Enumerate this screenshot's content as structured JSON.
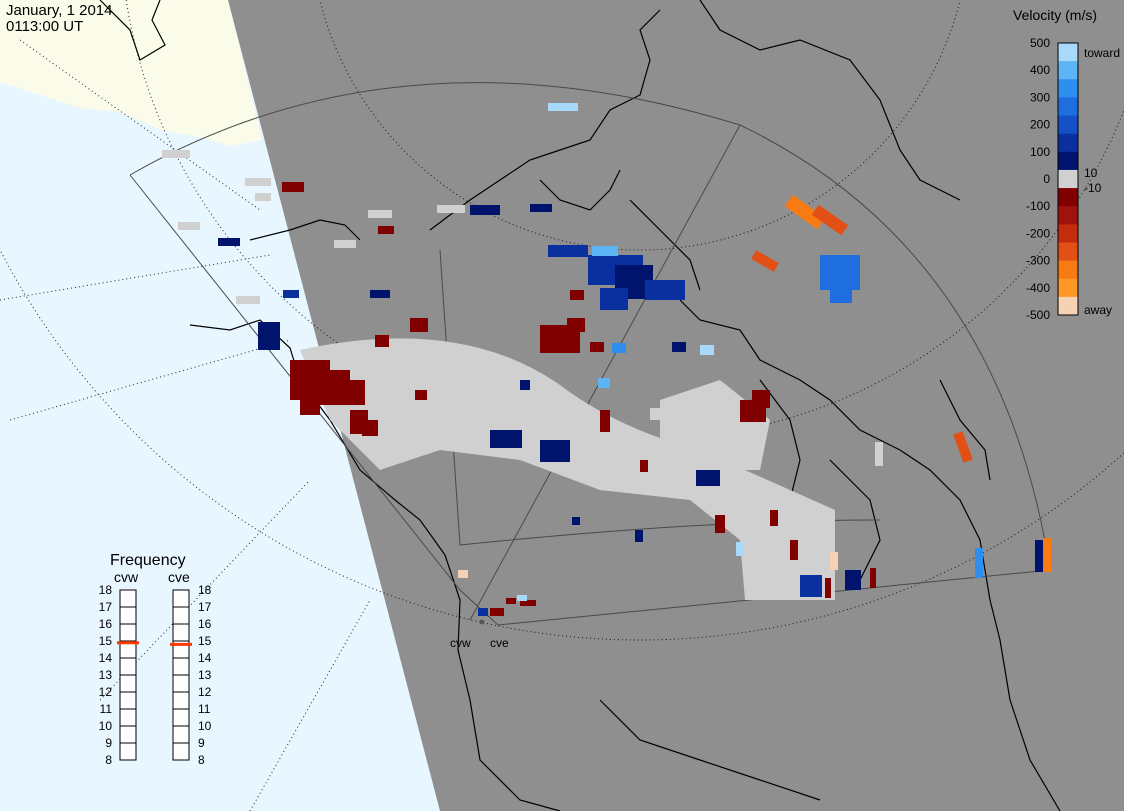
{
  "header": {
    "date": "January, 1 2014",
    "time": "0113:00 UT"
  },
  "legend": {
    "title": "Velocity (m/s)",
    "ticks": [
      "500",
      "400",
      "300",
      "200",
      "100",
      "0",
      "-100",
      "-200",
      "-300",
      "-400",
      "-500"
    ],
    "inner_pos": "10",
    "inner_neg": "-10",
    "toward": "toward",
    "away": "away",
    "colors": [
      "#f6d2b4",
      "#ff9826",
      "#f77a12",
      "#e25015",
      "#c42c0e",
      "#a0120e",
      "#800000",
      "#d0d0d0",
      "#00146e",
      "#0a30a0",
      "#1650c8",
      "#1e6ee0",
      "#2e8eef",
      "#5cb4f4",
      "#a8d8fa"
    ]
  },
  "radars": {
    "west": "cvw",
    "east": "cve"
  },
  "frequency": {
    "title": "Frequency",
    "labels": [
      "18",
      "17",
      "16",
      "15",
      "14",
      "13",
      "12",
      "11",
      "10",
      "9",
      "8"
    ],
    "west_value": 14.9,
    "east_value": 14.8,
    "marker_color": "#ff3800"
  },
  "map_colors": {
    "background": "#8f8f8f",
    "ocean": "#e8f6ff",
    "land": "#fbfbea"
  }
}
